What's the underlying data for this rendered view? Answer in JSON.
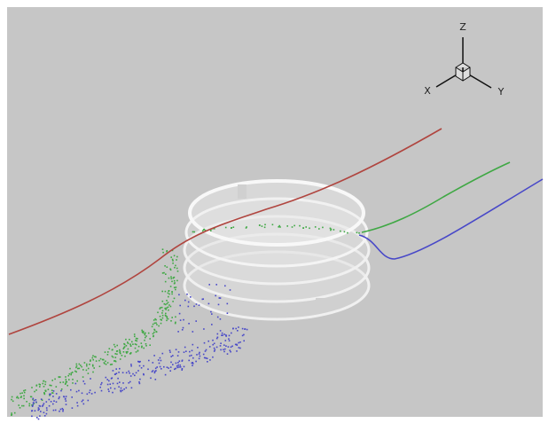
{
  "axes": {
    "z": "Z",
    "x": "X",
    "y": "Y"
  }
}
